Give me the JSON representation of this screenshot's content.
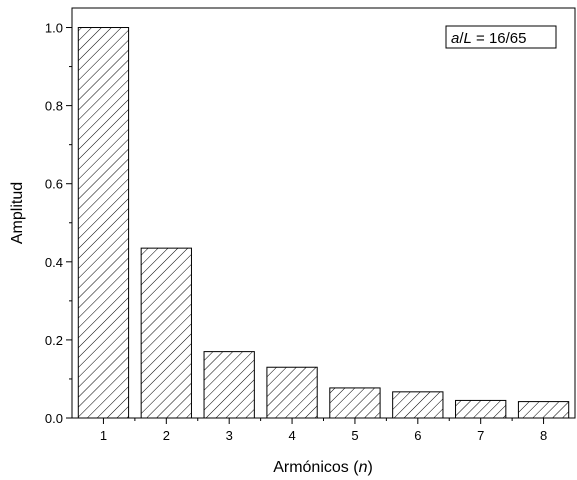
{
  "chart_data": {
    "type": "bar",
    "categories": [
      "1",
      "2",
      "3",
      "4",
      "5",
      "6",
      "7",
      "8"
    ],
    "values": [
      1.0,
      0.435,
      0.17,
      0.13,
      0.077,
      0.067,
      0.045,
      0.042
    ],
    "xlabel": "Armónicos",
    "xlabel_var": "n",
    "ylabel": "Amplitud",
    "ylim": [
      0,
      1.05
    ],
    "yticks": [
      "0.0",
      "0.2",
      "0.4",
      "0.6",
      "0.8",
      "1.0"
    ],
    "y_tick_values": [
      0.0,
      0.2,
      0.4,
      0.6,
      0.8,
      1.0
    ],
    "bar_fill": "diagonal hatch",
    "grid": false,
    "annotation": {
      "var_a": "a",
      "slash": "/",
      "var_L": "L",
      "rest": " = 16/65"
    }
  }
}
